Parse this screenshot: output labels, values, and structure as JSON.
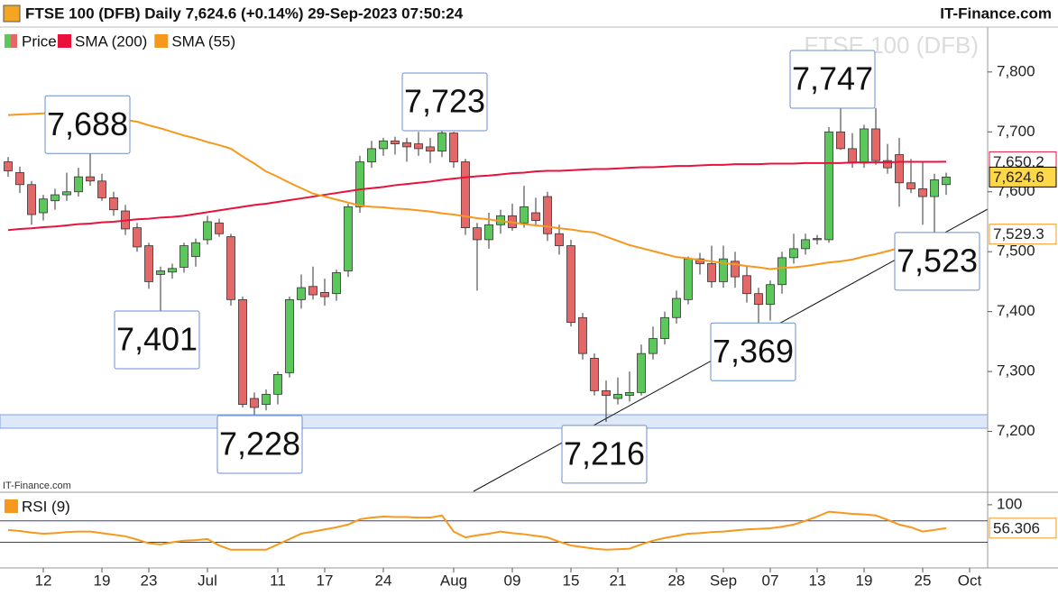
{
  "header": {
    "title": "FTSE 100 (DFB) Daily 7,624.6 (+0.14%) 29-Sep-2023 07:50:24",
    "brand": "IT-Finance.com",
    "watermark": "FTSE 100 (DFB)",
    "source": "IT-Finance.com"
  },
  "chart_data": [
    {
      "type": "candlestick",
      "name": "Price",
      "up_color": "#5cc85c",
      "down_color": "#e46868",
      "categories": [
        null,
        null,
        null,
        "12",
        null,
        null,
        null,
        null,
        "19",
        null,
        null,
        null,
        "23",
        null,
        null,
        null,
        null,
        "Jul",
        null,
        null,
        null,
        null,
        null,
        "11",
        null,
        null,
        null,
        "17",
        null,
        null,
        null,
        null,
        "24",
        null,
        null,
        null,
        null,
        null,
        "Aug",
        null,
        null,
        null,
        null,
        "09",
        null,
        null,
        null,
        null,
        "15",
        null,
        null,
        null,
        "21",
        null,
        null,
        null,
        null,
        "28",
        null,
        null,
        null,
        "Sep",
        null,
        null,
        null,
        "07",
        null,
        null,
        null,
        "13",
        null,
        null,
        null,
        "19",
        null,
        null,
        null,
        null,
        "25",
        null,
        null,
        null,
        "Oct"
      ],
      "open": [
        7650,
        7632,
        7612,
        7565,
        7585,
        7595,
        7600,
        7625,
        7618,
        7590,
        7568,
        7540,
        7510,
        7462,
        7466,
        7474,
        7492,
        7520,
        7548,
        7525,
        7420,
        7255,
        7245,
        7262,
        7298,
        7420,
        7442,
        7432,
        7430,
        7468,
        7575,
        7650,
        7672,
        7685,
        7682,
        7680,
        7675,
        7668,
        7698,
        7650,
        7540,
        7520,
        7545,
        7560,
        7548,
        7565,
        7592,
        7530,
        7510,
        7390,
        7322,
        7268,
        7255,
        7260,
        7265,
        7330,
        7355,
        7390,
        7420,
        7488,
        7480,
        7450,
        7484,
        7460,
        7430,
        7412,
        7445,
        7490,
        7505,
        7522,
        7520,
        7700,
        7672,
        7648,
        7705,
        7652,
        7662,
        7615,
        7605,
        7592,
        7612,
        null,
        null
      ],
      "high": [
        7658,
        7642,
        7618,
        7595,
        7605,
        7632,
        7640,
        7688,
        7630,
        7600,
        7578,
        7548,
        7515,
        7475,
        7480,
        7515,
        7522,
        7560,
        7555,
        7530,
        7425,
        7265,
        7270,
        7300,
        7425,
        7462,
        7475,
        7455,
        7470,
        7580,
        7660,
        7685,
        7690,
        7692,
        7690,
        7700,
        7690,
        7723,
        7700,
        7655,
        7548,
        7565,
        7570,
        7580,
        7610,
        7590,
        7600,
        7545,
        7520,
        7398,
        7330,
        7285,
        7290,
        7300,
        7345,
        7375,
        7400,
        7435,
        7492,
        7498,
        7510,
        7510,
        7500,
        7475,
        7440,
        7452,
        7500,
        7530,
        7530,
        7528,
        7708,
        7747,
        7698,
        7712,
        7740,
        7680,
        7690,
        7655,
        7650,
        7630,
        7632,
        null,
        null
      ],
      "low": [
        7625,
        7598,
        7545,
        7552,
        7570,
        7585,
        7592,
        7610,
        7585,
        7560,
        7528,
        7500,
        7438,
        7401,
        7455,
        7465,
        7475,
        7512,
        7525,
        7410,
        7240,
        7228,
        7235,
        7245,
        7290,
        7405,
        7420,
        7410,
        7418,
        7458,
        7565,
        7640,
        7660,
        7662,
        7650,
        7660,
        7648,
        7658,
        7640,
        7528,
        7435,
        7505,
        7530,
        7535,
        7540,
        7545,
        7518,
        7495,
        7375,
        7320,
        7260,
        7216,
        7245,
        7250,
        7260,
        7320,
        7345,
        7380,
        7412,
        7462,
        7440,
        7440,
        7440,
        7415,
        7369,
        7385,
        7430,
        7480,
        7495,
        7512,
        7515,
        7670,
        7640,
        7640,
        7645,
        7630,
        7575,
        7598,
        7545,
        7523,
        7595,
        null,
        null
      ],
      "close": [
        7635,
        7612,
        7562,
        7588,
        7595,
        7600,
        7625,
        7618,
        7590,
        7570,
        7538,
        7508,
        7450,
        7468,
        7472,
        7510,
        7515,
        7550,
        7530,
        7420,
        7245,
        7240,
        7262,
        7295,
        7420,
        7440,
        7428,
        7425,
        7465,
        7575,
        7650,
        7672,
        7685,
        7680,
        7675,
        7672,
        7668,
        7698,
        7650,
        7540,
        7520,
        7545,
        7560,
        7540,
        7575,
        7552,
        7530,
        7510,
        7382,
        7330,
        7268,
        7260,
        7262,
        7265,
        7330,
        7355,
        7390,
        7422,
        7488,
        7480,
        7450,
        7488,
        7458,
        7430,
        7412,
        7445,
        7490,
        7505,
        7520,
        7520,
        7700,
        7672,
        7648,
        7705,
        7652,
        7640,
        7615,
        7605,
        7592,
        7620,
        7624.6,
        null,
        null
      ],
      "series": [
        {
          "name": "SMA (200)",
          "color": "#e8123c",
          "values": [
            7536,
            7538,
            7539,
            7541,
            7542,
            7544,
            7546,
            7547,
            7549,
            7550,
            7552,
            7554,
            7555,
            7557,
            7558,
            7560,
            7563,
            7566,
            7569,
            7572,
            7575,
            7578,
            7580,
            7583,
            7586,
            7589,
            7592,
            7595,
            7598,
            7601,
            7604,
            7606,
            7608,
            7611,
            7613,
            7615,
            7617,
            7620,
            7622,
            7624,
            7626,
            7627,
            7629,
            7631,
            7632,
            7634,
            7635,
            7635,
            7636,
            7637,
            7638,
            7638,
            7639,
            7640,
            7641,
            7641,
            7642,
            7643,
            7643,
            7644,
            7645,
            7645,
            7646,
            7646,
            7646,
            7647,
            7647,
            7647,
            7648,
            7648,
            7648,
            7648,
            7649,
            7649,
            7649,
            7649,
            7650,
            7650,
            7650,
            7650,
            7650.2,
            null,
            null
          ]
        },
        {
          "name": "SMA (55)",
          "color": "#f7981d",
          "values": [
            7728,
            7729,
            7730,
            7731,
            7732,
            7730,
            7728,
            7726,
            7724,
            7722,
            7720,
            7717,
            7711,
            7706,
            7700,
            7694,
            7689,
            7683,
            7678,
            7672,
            7659,
            7647,
            7634,
            7625,
            7615,
            7606,
            7597,
            7592,
            7587,
            7582,
            7577,
            7575,
            7574,
            7572,
            7571,
            7569,
            7567,
            7564,
            7562,
            7559,
            7556,
            7554,
            7551,
            7549,
            7546,
            7544,
            7542,
            7539,
            7537,
            7534,
            7532,
            7525,
            7518,
            7511,
            7506,
            7501,
            7496,
            7491,
            7489,
            7486,
            7484,
            7481,
            7479,
            7476,
            7474,
            7471,
            7473,
            7474,
            7476,
            7479,
            7482,
            7484,
            7487,
            7492,
            7496,
            7501,
            7506,
            7512,
            7518,
            7524,
            7529.3,
            null,
            null
          ]
        }
      ],
      "ylim": [
        7100,
        7875
      ],
      "yticks": [
        {
          "value": 7200,
          "label": "7,200"
        },
        {
          "value": 7300,
          "label": "7,300"
        },
        {
          "value": 7400,
          "label": "7,400"
        },
        {
          "value": 7500,
          "label": "7,500"
        },
        {
          "value": 7600,
          "label": "7,600"
        },
        {
          "value": 7700,
          "label": "7,700"
        },
        {
          "value": 7800,
          "label": "7,800"
        }
      ],
      "grid": false,
      "annotations": [
        {
          "value": 7688,
          "label": "7,688"
        },
        {
          "value": 7723,
          "label": "7,723"
        },
        {
          "value": 7747,
          "label": "7,747"
        },
        {
          "value": 7401,
          "label": "7,401"
        },
        {
          "value": 7228,
          "label": "7,228"
        },
        {
          "value": 7216,
          "label": "7,216"
        },
        {
          "value": 7369,
          "label": "7,369"
        },
        {
          "value": 7523,
          "label": "7,523"
        }
      ],
      "price_tags": [
        {
          "value": 7650.2,
          "label": "7,650.2",
          "color": "#e8123c",
          "background": "#ffffff"
        },
        {
          "value": 7624.6,
          "label": "7,624.6",
          "color": "#000000",
          "background": "#ffd84a"
        },
        {
          "value": 7529.3,
          "label": "7,529.3",
          "color": "#f7981d",
          "background": "#ffffff"
        }
      ]
    },
    {
      "type": "line",
      "series": [
        {
          "name": "RSI (9)",
          "color": "#f7981d",
          "values": [
            53,
            51,
            48,
            46,
            47,
            49,
            50,
            50,
            47,
            44,
            41,
            35,
            28,
            26,
            30,
            33,
            34,
            36,
            24,
            16,
            16,
            16,
            16,
            26,
            36,
            46,
            50,
            54,
            58,
            63,
            73,
            76,
            78,
            77,
            77,
            76,
            76,
            80,
            50,
            39,
            43,
            46,
            50,
            47,
            45,
            42,
            39,
            31,
            24,
            21,
            18,
            16,
            17,
            18,
            26,
            33,
            38,
            42,
            46,
            47,
            49,
            50,
            52,
            54,
            55,
            56,
            59,
            63,
            70,
            78,
            87,
            85,
            83,
            82,
            80,
            72,
            63,
            58,
            50,
            53,
            56.306,
            null,
            null
          ]
        }
      ],
      "ylim": [
        -18,
        120
      ],
      "yticks": [
        100
      ],
      "levels": [
        70,
        30
      ],
      "level_color": "#3a3a9a",
      "price_tags": [
        {
          "value": 56.306,
          "label": "56.306",
          "color": "#f7981d",
          "background": "#ffffff"
        }
      ]
    }
  ]
}
